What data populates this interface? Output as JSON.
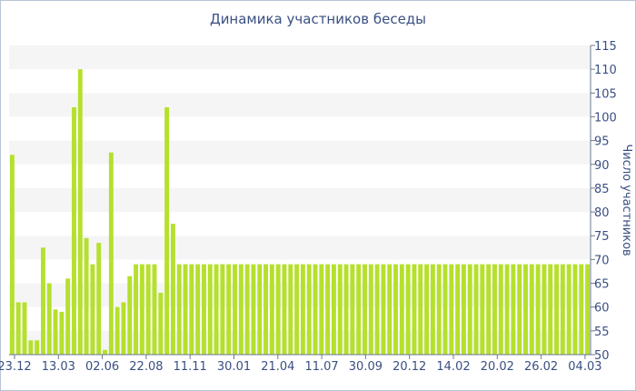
{
  "chart_data": {
    "type": "bar",
    "title": "Динамика участников беседы",
    "xlabel": "",
    "ylabel": "Число участников",
    "ylim": [
      50,
      115
    ],
    "y_ticks": [
      50,
      55,
      60,
      65,
      70,
      75,
      80,
      85,
      90,
      95,
      100,
      105,
      110,
      115
    ],
    "x_tick_labels": [
      "23.12",
      "13.03",
      "02.06",
      "22.08",
      "11.11",
      "30.01",
      "21.04",
      "11.07",
      "30.09",
      "20.12",
      "14.02",
      "20.02",
      "26.02",
      "04.03"
    ],
    "values": [
      92,
      61,
      61,
      53,
      53,
      72.5,
      65,
      59.5,
      59,
      66,
      102,
      110,
      74.5,
      69,
      73.5,
      51,
      92.5,
      60,
      61,
      66.5,
      69,
      69,
      69,
      69,
      63,
      102,
      77.5,
      69,
      69,
      69,
      69,
      69,
      69,
      69,
      69,
      69,
      69,
      69,
      69,
      69,
      69,
      69,
      69,
      69,
      69,
      69,
      69,
      69,
      69,
      69,
      69,
      69,
      69,
      69,
      69,
      69,
      69,
      69,
      69,
      69,
      69,
      69,
      69,
      69,
      69,
      69,
      69,
      69,
      69,
      69,
      69,
      69,
      69,
      69,
      69,
      69,
      69,
      69,
      69,
      69,
      69,
      69,
      69,
      69,
      69,
      69,
      69,
      69,
      69,
      69,
      69,
      69,
      69,
      69
    ],
    "grid": "horizontal bands",
    "y_axis_position": "right",
    "colors": {
      "bar": "#b5e02c",
      "band": "#f5f5f5",
      "text": "#3a4f82",
      "axis": "#6c7890"
    }
  }
}
